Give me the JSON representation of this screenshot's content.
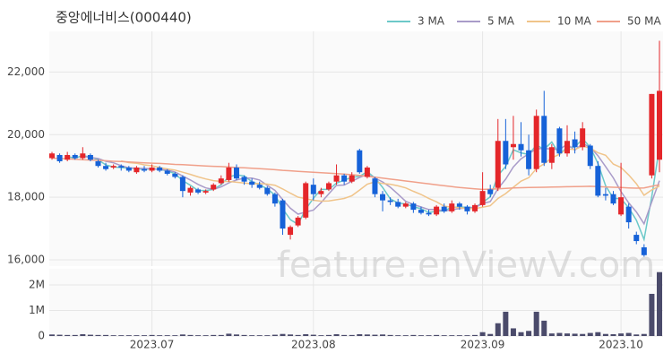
{
  "chart_data": {
    "type": "candlestick",
    "title": "중앙에너비스(000440)",
    "watermark": "feature.enViewV.com",
    "categories": [
      null,
      null,
      null,
      null,
      null,
      null,
      null,
      null,
      null,
      null,
      null,
      null,
      null,
      "2023.07",
      null,
      null,
      null,
      null,
      null,
      null,
      null,
      null,
      null,
      null,
      null,
      null,
      null,
      null,
      null,
      null,
      null,
      null,
      null,
      null,
      "2023.08",
      null,
      null,
      null,
      null,
      null,
      null,
      null,
      null,
      null,
      null,
      null,
      null,
      null,
      null,
      null,
      null,
      null,
      null,
      null,
      null,
      null,
      "2023.09",
      null,
      null,
      null,
      null,
      null,
      null,
      null,
      null,
      null,
      null,
      null,
      null,
      null,
      null,
      null,
      null,
      null,
      "2023.10",
      null,
      null,
      null,
      null,
      null
    ],
    "open": [
      19250,
      19350,
      19200,
      19350,
      19250,
      19350,
      19150,
      19000,
      18950,
      19000,
      18950,
      18800,
      18900,
      18850,
      18950,
      18850,
      18750,
      18650,
      18150,
      18250,
      18150,
      18250,
      18450,
      18550,
      18950,
      18650,
      18500,
      18400,
      18300,
      18100,
      17900,
      16800,
      17100,
      17350,
      18400,
      18100,
      18250,
      18500,
      18700,
      18500,
      19500,
      18650,
      18600,
      18100,
      17900,
      17850,
      17700,
      17800,
      17600,
      17500,
      17450,
      17700,
      17550,
      17800,
      17700,
      17550,
      17750,
      18250,
      18300,
      19800,
      19600,
      19700,
      19500,
      18900,
      20600,
      19100,
      20200,
      19400,
      19850,
      19600,
      19650,
      19000,
      18100,
      18100,
      17450,
      17700,
      16800,
      16400,
      18700,
      19200
    ],
    "high": [
      19450,
      19400,
      19450,
      19400,
      19600,
      19400,
      19200,
      19100,
      19050,
      19050,
      19000,
      19000,
      19000,
      19050,
      19000,
      18900,
      18800,
      18700,
      18350,
      18300,
      18250,
      18450,
      18700,
      19100,
      19050,
      18700,
      18600,
      18500,
      18350,
      18150,
      17950,
      17100,
      17400,
      18500,
      18600,
      18300,
      18500,
      19050,
      18750,
      18800,
      19550,
      19000,
      18650,
      18200,
      18000,
      17950,
      17850,
      17850,
      17700,
      17600,
      17750,
      17800,
      17900,
      17850,
      17750,
      17800,
      18800,
      18400,
      20500,
      20500,
      20600,
      20400,
      20000,
      20800,
      21400,
      19700,
      20250,
      20300,
      20100,
      20400,
      19700,
      19150,
      18300,
      18200,
      19100,
      17800,
      16900,
      16500,
      21300,
      23000
    ],
    "low": [
      19200,
      19100,
      19150,
      19200,
      19200,
      19150,
      18950,
      18850,
      18900,
      18850,
      18800,
      18750,
      18800,
      18800,
      18800,
      18700,
      18600,
      18000,
      18050,
      18100,
      18100,
      18200,
      18400,
      18500,
      18550,
      18400,
      18300,
      18250,
      18050,
      17700,
      16800,
      16650,
      17050,
      17300,
      17900,
      18000,
      18200,
      18400,
      18400,
      18450,
      18750,
      18600,
      18000,
      17550,
      17750,
      17650,
      17650,
      17500,
      17450,
      17400,
      17400,
      17500,
      17500,
      17600,
      17450,
      17500,
      17700,
      18000,
      18200,
      18900,
      19200,
      19300,
      18700,
      18800,
      19000,
      18900,
      19300,
      19300,
      19400,
      19500,
      18900,
      18000,
      17900,
      17750,
      17400,
      17000,
      16500,
      16100,
      18600,
      18800
    ],
    "close": [
      19400,
      19150,
      19350,
      19250,
      19400,
      19200,
      19000,
      18900,
      19000,
      18950,
      18850,
      18950,
      18850,
      18950,
      18850,
      18750,
      18650,
      18200,
      18300,
      18150,
      18200,
      18400,
      18600,
      18950,
      18600,
      18500,
      18400,
      18300,
      18100,
      17800,
      17000,
      17050,
      17350,
      18450,
      18100,
      18200,
      18450,
      18700,
      18500,
      18700,
      18800,
      18950,
      18100,
      17900,
      17850,
      17700,
      17800,
      17600,
      17500,
      17450,
      17700,
      17550,
      17800,
      17700,
      17550,
      17750,
      18200,
      18100,
      19800,
      19050,
      19700,
      19500,
      18900,
      20600,
      19100,
      19600,
      19400,
      19800,
      19600,
      20200,
      19000,
      18050,
      18050,
      17800,
      18000,
      17200,
      16600,
      16150,
      21300,
      21400
    ],
    "volume": [
      60000,
      50000,
      40000,
      40000,
      70000,
      50000,
      40000,
      40000,
      30000,
      30000,
      30000,
      30000,
      30000,
      40000,
      30000,
      30000,
      30000,
      60000,
      40000,
      30000,
      30000,
      40000,
      40000,
      90000,
      60000,
      40000,
      30000,
      30000,
      30000,
      50000,
      80000,
      60000,
      40000,
      70000,
      50000,
      30000,
      40000,
      70000,
      40000,
      40000,
      70000,
      60000,
      50000,
      60000,
      40000,
      30000,
      30000,
      40000,
      30000,
      30000,
      40000,
      30000,
      30000,
      30000,
      30000,
      40000,
      150000,
      80000,
      500000,
      950000,
      300000,
      150000,
      200000,
      950000,
      600000,
      100000,
      120000,
      100000,
      90000,
      80000,
      120000,
      150000,
      80000,
      70000,
      100000,
      120000,
      60000,
      80000,
      1650000,
      2500000
    ],
    "up_color": "#e4262a",
    "down_color": "#1662d8",
    "volume_color": "#4b4b6b",
    "series": [
      {
        "name": "3 MA",
        "color": "#6cc9c9",
        "values": [
          null,
          null,
          19300,
          19250,
          19333,
          19283,
          19200,
          19033,
          18967,
          18950,
          18933,
          18917,
          18883,
          18917,
          18883,
          18850,
          18750,
          18533,
          18383,
          18217,
          18217,
          18250,
          18400,
          18650,
          18717,
          18683,
          18500,
          18400,
          18267,
          18067,
          17633,
          17283,
          17133,
          17617,
          17967,
          18250,
          18250,
          18450,
          18550,
          18633,
          18667,
          18817,
          18617,
          18317,
          17950,
          17817,
          17783,
          17700,
          17633,
          17517,
          17550,
          17567,
          17683,
          17683,
          17683,
          17667,
          17833,
          18017,
          18700,
          18983,
          19517,
          19417,
          19367,
          19667,
          19533,
          19767,
          19367,
          19600,
          19600,
          19867,
          19600,
          19083,
          18367,
          17967,
          17950,
          17667,
          17267,
          16650,
          18017,
          19617
        ]
      },
      {
        "name": "5 MA",
        "color": "#a99bc9",
        "values": [
          null,
          null,
          null,
          null,
          19310,
          19270,
          19240,
          19150,
          19100,
          19010,
          18940,
          18930,
          18920,
          18910,
          18890,
          18870,
          18810,
          18680,
          18550,
          18410,
          18300,
          18250,
          18330,
          18460,
          18550,
          18610,
          18610,
          18550,
          18380,
          18220,
          17920,
          17650,
          17460,
          17530,
          17590,
          17830,
          18110,
          18380,
          18390,
          18510,
          18630,
          18730,
          18610,
          18490,
          18320,
          18100,
          17870,
          17770,
          17690,
          17610,
          17610,
          17560,
          17600,
          17640,
          17660,
          17670,
          17800,
          17860,
          18280,
          18580,
          18970,
          19230,
          19390,
          19550,
          19560,
          19540,
          19520,
          19700,
          19500,
          19720,
          19600,
          19330,
          18980,
          18620,
          18180,
          17820,
          17530,
          17150,
          17850,
          18530
        ]
      },
      {
        "name": "10 MA",
        "color": "#f0c48a",
        "values": [
          null,
          null,
          null,
          null,
          null,
          null,
          null,
          null,
          null,
          19160,
          19105,
          19085,
          19035,
          19005,
          18950,
          18905,
          18870,
          18800,
          18730,
          18650,
          18585,
          18530,
          18505,
          18505,
          18480,
          18455,
          18430,
          18440,
          18420,
          18385,
          18265,
          18130,
          18005,
          17955,
          17905,
          17875,
          17880,
          17920,
          17960,
          18050,
          18230,
          18420,
          18495,
          18440,
          18415,
          18365,
          18300,
          18190,
          18090,
          17965,
          17855,
          17715,
          17685,
          17665,
          17635,
          17640,
          17680,
          17730,
          17960,
          18120,
          18320,
          18515,
          18625,
          18915,
          19070,
          19255,
          19375,
          19545,
          19525,
          19640,
          19570,
          19425,
          19340,
          19060,
          18950,
          18710,
          18430,
          18065,
          18235,
          18355
        ]
      },
      {
        "name": "50 MA",
        "color": "#f0a08a",
        "values": [
          19250,
          19240,
          19230,
          19215,
          19200,
          19190,
          19180,
          19165,
          19150,
          19140,
          19130,
          19115,
          19100,
          19090,
          19080,
          19065,
          19050,
          19040,
          19030,
          19015,
          19000,
          18990,
          18980,
          18965,
          18950,
          18940,
          18930,
          18915,
          18900,
          18880,
          18860,
          18845,
          18830,
          18815,
          18800,
          18785,
          18770,
          18755,
          18740,
          18720,
          18700,
          18670,
          18640,
          18610,
          18580,
          18550,
          18520,
          18490,
          18460,
          18430,
          18400,
          18370,
          18340,
          18310,
          18290,
          18270,
          18250,
          18260,
          18270,
          18285,
          18300,
          18305,
          18310,
          18315,
          18320,
          18325,
          18330,
          18335,
          18340,
          18345,
          18350,
          18340,
          18330,
          18320,
          18310,
          18300,
          18290,
          18300,
          18350,
          18400
        ]
      }
    ],
    "ylim": [
      15800,
      23300
    ],
    "yticks": [
      {
        "value": 16000,
        "label": "16,000"
      },
      {
        "value": 18000,
        "label": "18,000"
      },
      {
        "value": 20000,
        "label": "20,000"
      },
      {
        "value": 22000,
        "label": "22,000"
      }
    ],
    "volume_ylim": [
      0,
      2630000
    ],
    "volume_yticks": [
      0,
      {
        "value": 1000000,
        "label": "1M"
      },
      {
        "value": 2000000,
        "label": "2M"
      }
    ],
    "grid": true
  }
}
